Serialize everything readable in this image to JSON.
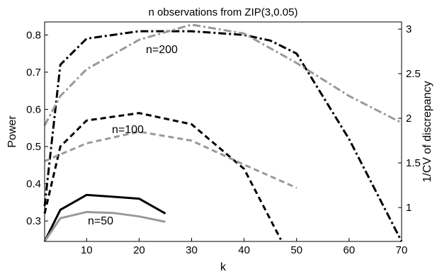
{
  "chart_data": {
    "type": "line",
    "title": "n observations from ZIP(3,0.05)",
    "xlabel": "k",
    "ylabel": "Power",
    "ylabel_right": "1/CV of discrepancy",
    "xlim": [
      2,
      70
    ],
    "ylim": [
      0.245,
      0.835
    ],
    "ylim_right": [
      0.62,
      3.08
    ],
    "x_ticks": [
      "10",
      "20",
      "30",
      "40",
      "50",
      "60",
      "70"
    ],
    "y_ticks": [
      "0.3",
      "0.4",
      "0.5",
      "0.6",
      "0.7",
      "0.8"
    ],
    "y_ticks_right": [
      "1",
      "1.5",
      "2",
      "2.5",
      "3"
    ],
    "annotations": [
      "n=200",
      "n=100",
      "n=50"
    ],
    "grid": false,
    "series": [
      {
        "axis": "left",
        "color": "#000000",
        "style": "dash-dot",
        "x": [
          2,
          5,
          10,
          20,
          30,
          40,
          45,
          50,
          60,
          70
        ],
        "y": [
          0.34,
          0.72,
          0.79,
          0.81,
          0.81,
          0.8,
          0.785,
          0.75,
          0.52,
          0.245
        ]
      },
      {
        "axis": "right",
        "color": "#999999",
        "style": "dash-dot",
        "x": [
          2,
          5,
          10,
          20,
          30,
          40,
          50,
          60,
          70
        ],
        "y": [
          1.92,
          2.25,
          2.55,
          2.88,
          3.05,
          2.95,
          2.62,
          2.25,
          1.95
        ]
      },
      {
        "axis": "left",
        "color": "#000000",
        "style": "dash",
        "x": [
          2,
          5,
          10,
          20,
          30,
          40,
          47
        ],
        "y": [
          0.32,
          0.5,
          0.57,
          0.59,
          0.56,
          0.44,
          0.25
        ]
      },
      {
        "axis": "right",
        "color": "#999999",
        "style": "dash",
        "x": [
          2,
          10,
          20,
          30,
          40,
          50
        ],
        "y": [
          1.52,
          1.72,
          1.85,
          1.75,
          1.48,
          1.22
        ]
      },
      {
        "axis": "left",
        "color": "#000000",
        "style": "solid",
        "x": [
          2,
          5,
          10,
          15,
          20,
          25
        ],
        "y": [
          0.245,
          0.33,
          0.37,
          0.365,
          0.36,
          0.32
        ]
      },
      {
        "axis": "right",
        "color": "#999999",
        "style": "solid",
        "x": [
          2,
          5,
          10,
          15,
          20,
          25
        ],
        "y": [
          0.62,
          0.88,
          0.95,
          0.94,
          0.9,
          0.84
        ]
      }
    ]
  }
}
